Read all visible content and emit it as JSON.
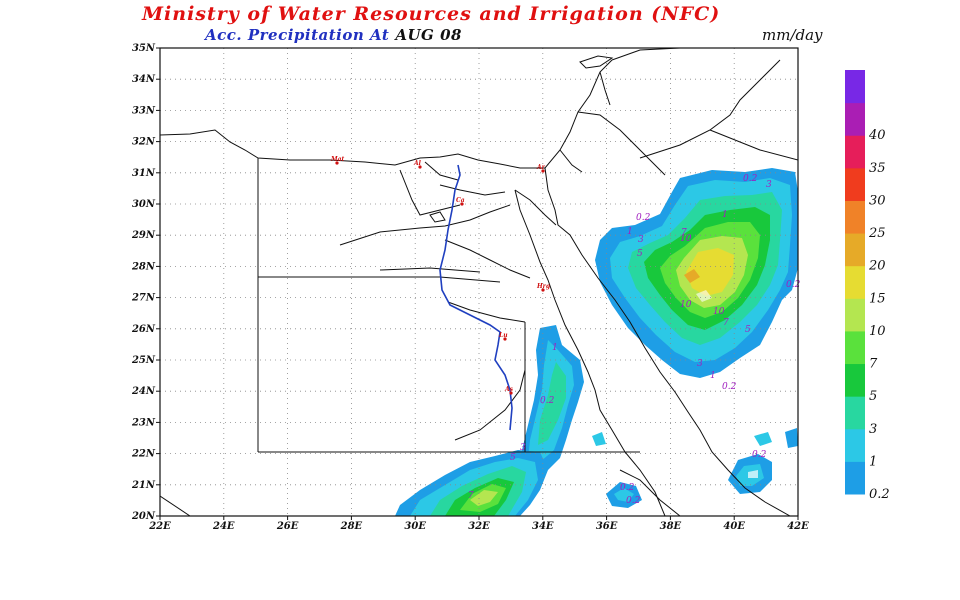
{
  "header": {
    "title": "Ministry of Water Resources and Irrigation (NFC)",
    "subtitle": "Acc. Precipitation",
    "at_label": "At",
    "date": "AUG 08",
    "units": "mm/day"
  },
  "axes": {
    "lat_labels": [
      "20N",
      "21N",
      "22N",
      "23N",
      "24N",
      "25N",
      "26N",
      "27N",
      "28N",
      "29N",
      "30N",
      "31N",
      "32N",
      "33N",
      "34N",
      "35N"
    ],
    "lon_labels": [
      "22E",
      "24E",
      "26E",
      "28E",
      "30E",
      "32E",
      "34E",
      "36E",
      "38E",
      "40E",
      "42E"
    ],
    "lat_range": [
      20,
      35
    ],
    "lon_range": [
      22,
      42
    ],
    "grid": "dotted"
  },
  "colorbar": {
    "levels": [
      "0.2",
      "1",
      "3",
      "5",
      "7",
      "10",
      "15",
      "20",
      "25",
      "30",
      "35",
      "40"
    ],
    "colors": [
      "#1e9ee6",
      "#2cc8e6",
      "#28d7a0",
      "#18c83c",
      "#5ae13c",
      "#b4e650",
      "#e6dc32",
      "#e6aa28",
      "#f08228",
      "#f03c1e",
      "#e61e5a",
      "#aa1eb4",
      "#7828e6"
    ]
  },
  "contour_labels": [
    {
      "text": "0.2"
    },
    {
      "text": "3"
    },
    {
      "text": "1"
    },
    {
      "text": "0.2"
    },
    {
      "text": "1"
    },
    {
      "text": "3"
    },
    {
      "text": "5"
    },
    {
      "text": "7"
    },
    {
      "text": "10"
    },
    {
      "text": "10"
    },
    {
      "text": "10"
    },
    {
      "text": "7"
    },
    {
      "text": "5"
    },
    {
      "text": "3"
    },
    {
      "text": "1"
    },
    {
      "text": "0.2"
    },
    {
      "text": "0.2"
    },
    {
      "text": "0.2"
    },
    {
      "text": "1"
    },
    {
      "text": "0.2"
    },
    {
      "text": "3"
    },
    {
      "text": "5"
    },
    {
      "text": "7"
    },
    {
      "text": "0.2"
    },
    {
      "text": "0.2"
    }
  ],
  "cities": [
    "Mat",
    "Al",
    "Ca",
    "Ar",
    "Hrg",
    "Lu",
    "As"
  ]
}
